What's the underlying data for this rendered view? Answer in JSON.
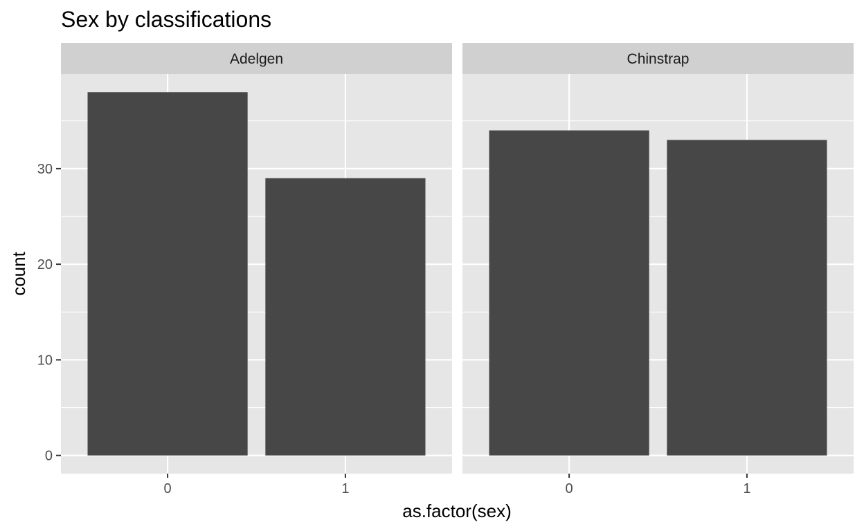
{
  "chart_data": {
    "type": "bar",
    "title": "Sex by classifications",
    "xlabel": "as.factor(sex)",
    "ylabel": "count",
    "ylim": [
      -1.9,
      39.9
    ],
    "yticks": [
      0,
      10,
      20,
      30
    ],
    "grid": true,
    "facets": [
      {
        "name": "Adelgen",
        "categories": [
          "0",
          "1"
        ],
        "values": [
          38,
          29
        ]
      },
      {
        "name": "Chinstrap",
        "categories": [
          "0",
          "1"
        ],
        "values": [
          34,
          33
        ]
      }
    ],
    "colors": {
      "bar": "#474747",
      "panel": "#e6e6e6",
      "strip": "#d0d0d0",
      "grid": "#ffffff",
      "tick": "#333333"
    }
  }
}
